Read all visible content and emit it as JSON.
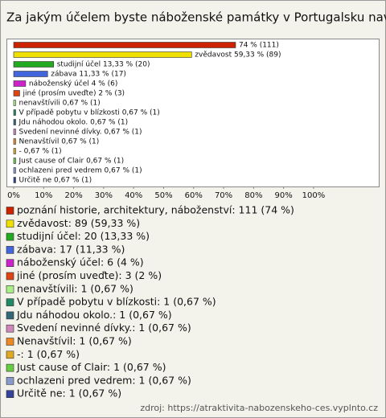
{
  "chart_data": {
    "type": "barh",
    "title": "Za jakým účelem byste náboženské památky v Portugalsku navštívili?",
    "values": [
      74,
      59.33,
      13.33,
      11.33,
      4,
      2,
      0.67,
      0.67,
      0.67,
      0.67,
      0.67,
      0.67,
      0.67,
      0.67,
      0.67
    ],
    "value_labels": [
      "74 % (111)",
      "zvědavost 59,33 % (89)",
      "studijní účel 13,33 % (20)",
      "zábava 11,33 % (17)",
      "náboženský účel 4 % (6)",
      "jiné (prosím uveďte) 2 % (3)",
      "nenavštívili 0,67 % (1)",
      "V případě pobytu v blízkosti 0,67 % (1)",
      "Jdu náhodou okolo. 0,67 % (1)",
      "Svedení nevinné dívky. 0,67 % (1)",
      "Nenavštívil 0,67 % (1)",
      "- 0,67 % (1)",
      "Just cause of Clair 0,67 % (1)",
      "ochlazeni pred vedrem 0,67 % (1)",
      "Určitě ne 0,67 % (1)"
    ],
    "legend": [
      "poznání historie, architektury, náboženství: 111 (74 %)",
      "zvědavost: 89 (59,33 %)",
      "studijní účel: 20 (13,33 %)",
      "zábava: 17 (11,33 %)",
      "náboženský účel: 6 (4 %)",
      "jiné (prosím uveďte): 3 (2 %)",
      "nenavštívili: 1 (0,67 %)",
      "V případě pobytu v blízkosti: 1 (0,67 %)",
      "Jdu náhodou okolo.: 1 (0,67 %)",
      "Svedení nevinné dívky.: 1 (0,67 %)",
      "Nenavštívil: 1 (0,67 %)",
      "-: 1 (0,67 %)",
      "Just cause of Clair: 1 (0,67 %)",
      "ochlazeni pred vedrem: 1 (0,67 %)",
      "Určitě ne: 1 (0,67 %)"
    ],
    "colors": [
      "#cc2200",
      "#f0e000",
      "#22aa22",
      "#4466dd",
      "#cc22cc",
      "#dd4411",
      "#aaee88",
      "#228866",
      "#336677",
      "#cc88bb",
      "#ee8822",
      "#ddaa22",
      "#66cc44",
      "#8899cc",
      "#334499"
    ],
    "xlim": [
      0,
      122
    ],
    "xticks": [
      {
        "value": 0,
        "label": "0%"
      },
      {
        "value": 10,
        "label": "10%"
      },
      {
        "value": 20,
        "label": "20%"
      },
      {
        "value": 30,
        "label": "30%"
      },
      {
        "value": 40,
        "label": "40%"
      },
      {
        "value": 50,
        "label": "50%"
      },
      {
        "value": 60,
        "label": "60%"
      },
      {
        "value": 70,
        "label": "70%"
      },
      {
        "value": 80,
        "label": "80%"
      },
      {
        "value": 90,
        "label": "90%"
      },
      {
        "value": 100,
        "label": "100%"
      }
    ],
    "source": "zdroj: https://atraktivita-nabozenskeho-ces.vyplnto.cz"
  }
}
